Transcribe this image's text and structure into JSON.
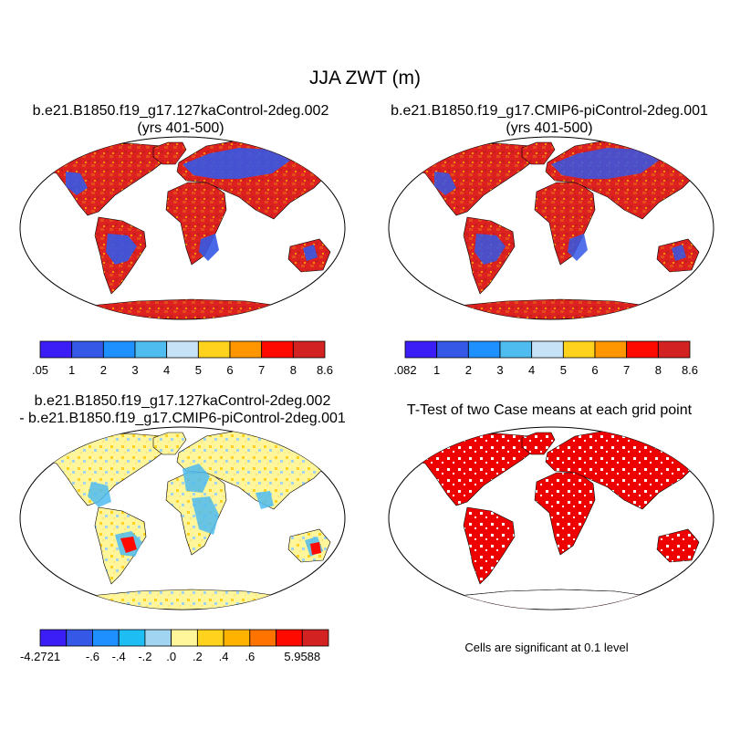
{
  "title": "JJA ZWT (m)",
  "panels": [
    {
      "id": "case1",
      "title_line1": "b.e21.B1850.f19_g17.127kaControl-2deg.002",
      "title_line2": "(yrs 401-500)"
    },
    {
      "id": "case2",
      "title_line1": "b.e21.B1850.f19_g17.CMIP6-piControl-2deg.001",
      "title_line2": "(yrs 401-500)"
    },
    {
      "id": "difference",
      "title_line1": "b.e21.B1850.f19_g17.127kaControl-2deg.002",
      "title_line2": "- b.e21.B1850.f19_g17.CMIP6-piControl-2deg.001"
    },
    {
      "id": "ttest",
      "title_line1": "T-Test of two Case means at each grid point"
    }
  ],
  "colorbars": [
    {
      "panel": "case1",
      "colors": [
        "#3b1ef5",
        "#3558e6",
        "#1e90ff",
        "#4fbcf0",
        "#c6e2f7",
        "#ffd21e",
        "#ff9600",
        "#ff0a00",
        "#d22222"
      ],
      "labels": [
        ".05",
        "1",
        "2",
        "3",
        "4",
        "5",
        "6",
        "7",
        "8",
        "8.6"
      ]
    },
    {
      "panel": "case2",
      "colors": [
        "#3b1ef5",
        "#3558e6",
        "#1e90ff",
        "#4fbcf0",
        "#c6e2f7",
        "#ffd21e",
        "#ff9600",
        "#ff0a00",
        "#d22222"
      ],
      "labels": [
        ".082",
        "1",
        "2",
        "3",
        "4",
        "5",
        "6",
        "7",
        "8",
        "8.6"
      ]
    },
    {
      "panel": "difference",
      "colors": [
        "#3b1ef5",
        "#3558e6",
        "#1e90ff",
        "#1ebef5",
        "#a0d4f0",
        "#fff59a",
        "#ffd21e",
        "#ffb300",
        "#ff7300",
        "#ff0a00",
        "#d22222"
      ],
      "labels": [
        "-4.2721",
        "",
        "-.6",
        "-.4",
        "-.2",
        ".0",
        ".2",
        ".4",
        ".6",
        "",
        "5.9588"
      ]
    }
  ],
  "significance_note": "Cells are significant at 0.1 level",
  "colors": {
    "land_red": "#dd2020",
    "ttest_red": "#ee0000",
    "diff_base": "#fff59a",
    "map_outline": "#000000"
  }
}
